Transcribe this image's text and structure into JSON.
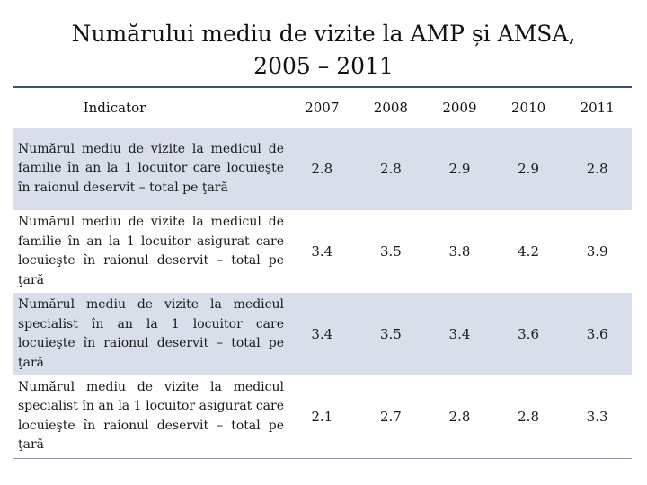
{
  "title": {
    "line1": "Numărului mediu de vizite la AMP și AMSA,",
    "line2": "2005 – 2011"
  },
  "table": {
    "headers": [
      "Indicator",
      "2007",
      "2008",
      "2009",
      "2010",
      "2011"
    ],
    "rows": [
      {
        "label": "Numărul mediu de vizite la medicul de familie în an la 1 locuitor care locuieşte în raionul deservit – total pe ţară",
        "values": [
          "2.8",
          "2.8",
          "2.9",
          "2.9",
          "2.8"
        ]
      },
      {
        "label": "Numărul mediu de vizite la medicul de familie în an la 1 locuitor asigurat care locuieşte în raionul deservit – total pe ţară",
        "values": [
          "3.4",
          "3.5",
          "3.8",
          "4.2",
          "3.9"
        ]
      },
      {
        "label": "Numărul mediu de vizite la medicul specialist în an la 1 locuitor care locuieşte în raionul deservit – total pe ţară",
        "values": [
          "3.4",
          "3.5",
          "3.4",
          "3.6",
          "3.6"
        ]
      },
      {
        "label": "Numărul mediu de vizite la medicul specialist în an la 1 locuitor asigurat care locuieşte în raionul deservit – total pe ţară",
        "values": [
          "2.1",
          "2.7",
          "2.8",
          "2.8",
          "3.3"
        ]
      }
    ]
  },
  "colors": {
    "header_rule": "#3b4f7a",
    "row_shade": "#d9deeb"
  }
}
